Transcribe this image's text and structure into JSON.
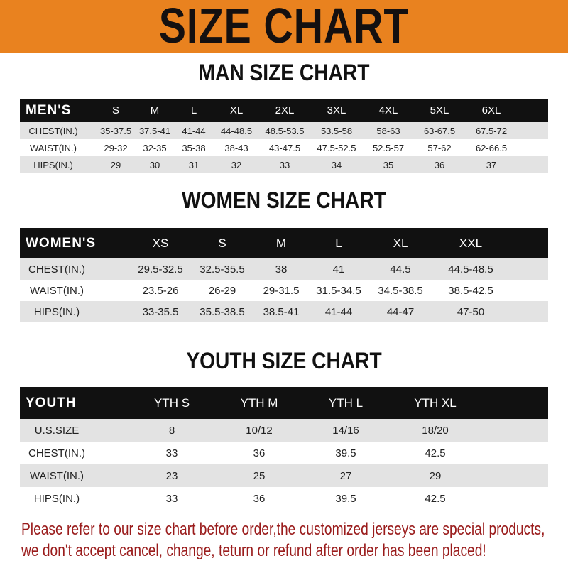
{
  "banner": {
    "title": "SIZE CHART",
    "color": "#e9821f"
  },
  "men": {
    "title": "MAN SIZE CHART",
    "header_label": "MEN'S",
    "sizes": [
      "S",
      "M",
      "L",
      "XL",
      "2XL",
      "3XL",
      "4XL",
      "5XL",
      "6XL"
    ],
    "rows": [
      {
        "label": "CHEST(IN.)",
        "values": [
          "35-37.5",
          "37.5-41",
          "41-44",
          "44-48.5",
          "48.5-53.5",
          "53.5-58",
          "58-63",
          "63-67.5",
          "67.5-72"
        ]
      },
      {
        "label": "WAIST(IN.)",
        "values": [
          "29-32",
          "32-35",
          "35-38",
          "38-43",
          "43-47.5",
          "47.5-52.5",
          "52.5-57",
          "57-62",
          "62-66.5"
        ]
      },
      {
        "label": "HIPS(IN.)",
        "values": [
          "29",
          "30",
          "31",
          "32",
          "33",
          "34",
          "35",
          "36",
          "37"
        ]
      }
    ]
  },
  "women": {
    "title": "WOMEN SIZE CHART",
    "header_label": "WOMEN'S",
    "sizes": [
      "XS",
      "S",
      "M",
      "L",
      "XL",
      "XXL"
    ],
    "rows": [
      {
        "label": "CHEST(IN.)",
        "values": [
          "29.5-32.5",
          "32.5-35.5",
          "38",
          "41",
          "44.5",
          "44.5-48.5"
        ]
      },
      {
        "label": "WAIST(IN.)",
        "values": [
          "23.5-26",
          "26-29",
          "29-31.5",
          "31.5-34.5",
          "34.5-38.5",
          "38.5-42.5"
        ]
      },
      {
        "label": "HIPS(IN.)",
        "values": [
          "33-35.5",
          "35.5-38.5",
          "38.5-41",
          "41-44",
          "44-47",
          "47-50"
        ]
      }
    ]
  },
  "youth": {
    "title": "YOUTH SIZE CHART",
    "header_label": "YOUTH",
    "sizes": [
      "YTH S",
      "YTH M",
      "YTH L",
      "YTH XL"
    ],
    "rows": [
      {
        "label": "U.S.SIZE",
        "values": [
          "8",
          "10/12",
          "14/16",
          "18/20"
        ]
      },
      {
        "label": "CHEST(IN.)",
        "values": [
          "33",
          "36",
          "39.5",
          "42.5"
        ]
      },
      {
        "label": "WAIST(IN.)",
        "values": [
          "23",
          "25",
          "27",
          "29"
        ]
      },
      {
        "label": "HIPS(IN.)",
        "values": [
          "33",
          "36",
          "39.5",
          "42.5"
        ]
      }
    ]
  },
  "notice": {
    "line1": "Please refer to our size chart before order,the customized jerseys are special products,",
    "line2": "we don't accept cancel, change, teturn or refund after order has been placed!",
    "color": "#9a1c1c"
  }
}
